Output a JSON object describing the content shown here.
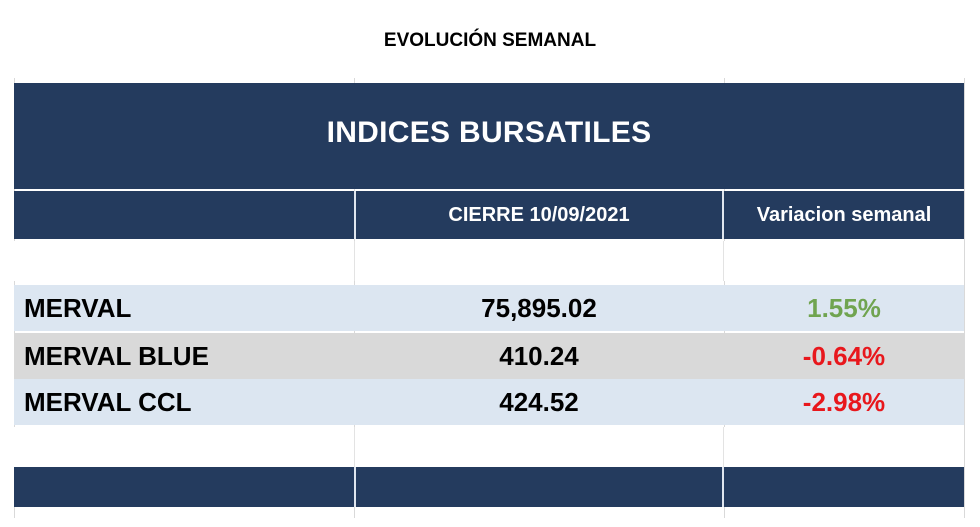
{
  "title": "EVOLUCIÓN SEMANAL",
  "table": {
    "banner": "INDICES BURSATILES",
    "columns": [
      "",
      "CIERRE 10/09/2021",
      "Variacion semanal"
    ],
    "rows": [
      {
        "name": "MERVAL",
        "close": "75,895.02",
        "change": "1.55%",
        "change_color": "#70a450"
      },
      {
        "name": "MERVAL BLUE",
        "close": "410.24",
        "change": "-0.64%",
        "change_color": "#e8171c"
      },
      {
        "name": "MERVAL CCL",
        "close": "424.52",
        "change": "-2.98%",
        "change_color": "#e8171c"
      }
    ]
  },
  "colors": {
    "header_bg": "#243b5e",
    "row_light": "#dce6f1",
    "row_gray": "#d9d9d9"
  }
}
